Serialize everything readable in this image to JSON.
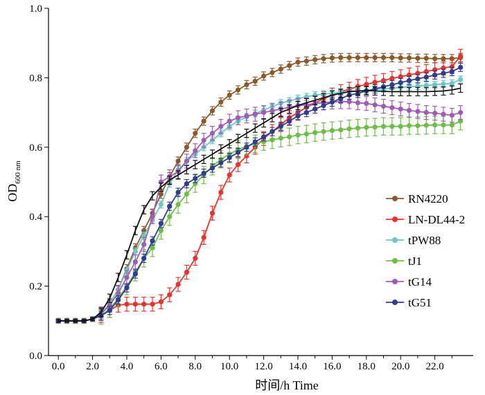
{
  "chart_data": {
    "type": "line",
    "title": "",
    "xlabel": "时间/h  Time",
    "ylabel": "OD",
    "ylabel_sub": "600 nm",
    "xlim": [
      -0.25,
      24.0
    ],
    "ylim": [
      0.0,
      1.0
    ],
    "x_ticks": [
      0,
      2,
      4,
      6,
      8,
      10,
      12,
      14,
      16,
      18,
      20,
      22
    ],
    "x_tick_labels": [
      "0.0",
      "2.0",
      "4.0",
      "6.0",
      "8.0",
      "10.0",
      "12.0",
      "14.0",
      "16.0",
      "18.0",
      "20.0",
      "22.0"
    ],
    "y_ticks": [
      0.0,
      0.2,
      0.4,
      0.6,
      0.8,
      1.0
    ],
    "y_tick_labels": [
      "0.0",
      "0.2",
      "0.4",
      "0.6",
      "0.8",
      "1.0"
    ],
    "grid": false,
    "legend_position": "right",
    "series": [
      {
        "name": "RN4220",
        "color": "#8B5A2B",
        "err": 0.012,
        "values": [
          0.1,
          0.1,
          0.1,
          0.1,
          0.105,
          0.12,
          0.15,
          0.19,
          0.25,
          0.31,
          0.36,
          0.41,
          0.465,
          0.515,
          0.56,
          0.6,
          0.64,
          0.675,
          0.705,
          0.73,
          0.75,
          0.765,
          0.78,
          0.79,
          0.805,
          0.815,
          0.825,
          0.835,
          0.845,
          0.848,
          0.852,
          0.855,
          0.857,
          0.858,
          0.858,
          0.858,
          0.858,
          0.858,
          0.858,
          0.858,
          0.857,
          0.857,
          0.856,
          0.856,
          0.855,
          0.855,
          0.855,
          0.858
        ]
      },
      {
        "name": "LN-DL44-2",
        "color": "#E8322B",
        "err": 0.02,
        "values": [
          0.1,
          0.1,
          0.1,
          0.1,
          0.105,
          0.115,
          0.13,
          0.145,
          0.148,
          0.148,
          0.148,
          0.148,
          0.155,
          0.175,
          0.205,
          0.24,
          0.28,
          0.34,
          0.41,
          0.47,
          0.52,
          0.55,
          0.575,
          0.6,
          0.625,
          0.645,
          0.665,
          0.685,
          0.7,
          0.715,
          0.727,
          0.74,
          0.75,
          0.76,
          0.767,
          0.775,
          0.781,
          0.787,
          0.792,
          0.798,
          0.803,
          0.808,
          0.813,
          0.818,
          0.823,
          0.828,
          0.832,
          0.862
        ]
      },
      {
        "name": "tPW88",
        "color": "#6CC6C6",
        "err": 0.01,
        "values": [
          0.1,
          0.1,
          0.1,
          0.1,
          0.105,
          0.12,
          0.15,
          0.19,
          0.245,
          0.3,
          0.345,
          0.39,
          0.435,
          0.495,
          0.535,
          0.56,
          0.58,
          0.6,
          0.62,
          0.64,
          0.66,
          0.675,
          0.687,
          0.697,
          0.707,
          0.717,
          0.727,
          0.733,
          0.74,
          0.745,
          0.75,
          0.753,
          0.755,
          0.758,
          0.76,
          0.762,
          0.764,
          0.766,
          0.768,
          0.77,
          0.772,
          0.774,
          0.776,
          0.778,
          0.78,
          0.782,
          0.784,
          0.795
        ]
      },
      {
        "name": "tJ1",
        "color": "#6DBE45",
        "err": 0.025,
        "values": [
          0.1,
          0.1,
          0.1,
          0.1,
          0.105,
          0.115,
          0.135,
          0.165,
          0.2,
          0.24,
          0.28,
          0.31,
          0.36,
          0.4,
          0.435,
          0.465,
          0.495,
          0.52,
          0.545,
          0.565,
          0.58,
          0.593,
          0.603,
          0.61,
          0.616,
          0.621,
          0.626,
          0.63,
          0.635,
          0.638,
          0.642,
          0.645,
          0.648,
          0.65,
          0.653,
          0.655,
          0.657,
          0.658,
          0.66,
          0.66,
          0.66,
          0.662,
          0.662,
          0.663,
          0.664,
          0.664,
          0.664,
          0.675
        ]
      },
      {
        "name": "tG14",
        "color": "#A05BB5",
        "err": 0.02,
        "values": [
          0.1,
          0.1,
          0.1,
          0.1,
          0.105,
          0.12,
          0.145,
          0.18,
          0.225,
          0.27,
          0.32,
          0.4,
          0.5,
          0.515,
          0.53,
          0.56,
          0.59,
          0.62,
          0.64,
          0.66,
          0.675,
          0.685,
          0.69,
          0.695,
          0.7,
          0.705,
          0.71,
          0.715,
          0.72,
          0.722,
          0.726,
          0.728,
          0.73,
          0.731,
          0.731,
          0.728,
          0.726,
          0.722,
          0.718,
          0.714,
          0.71,
          0.706,
          0.703,
          0.7,
          0.698,
          0.695,
          0.692,
          0.7
        ]
      },
      {
        "name": "tG51",
        "color": "#2E3D8F",
        "err": 0.012,
        "values": [
          0.1,
          0.1,
          0.1,
          0.1,
          0.105,
          0.115,
          0.13,
          0.16,
          0.195,
          0.235,
          0.28,
          0.33,
          0.38,
          0.43,
          0.47,
          0.495,
          0.51,
          0.525,
          0.54,
          0.555,
          0.57,
          0.585,
          0.6,
          0.615,
          0.63,
          0.645,
          0.66,
          0.675,
          0.69,
          0.7,
          0.71,
          0.72,
          0.73,
          0.74,
          0.75,
          0.755,
          0.762,
          0.768,
          0.774,
          0.78,
          0.786,
          0.792,
          0.797,
          0.802,
          0.808,
          0.813,
          0.818,
          0.83
        ]
      },
      {
        "name": "",
        "color": "#111111",
        "err": 0.012,
        "values": [
          0.1,
          0.1,
          0.1,
          0.1,
          0.105,
          0.125,
          0.165,
          0.225,
          0.29,
          0.36,
          0.42,
          0.46,
          0.485,
          0.505,
          0.52,
          0.535,
          0.55,
          0.565,
          0.58,
          0.595,
          0.61,
          0.625,
          0.64,
          0.655,
          0.67,
          0.685,
          0.7,
          0.71,
          0.72,
          0.728,
          0.735,
          0.742,
          0.75,
          0.755,
          0.76,
          0.762,
          0.763,
          0.762,
          0.761,
          0.76,
          0.76,
          0.76,
          0.76,
          0.76,
          0.761,
          0.762,
          0.765,
          0.77
        ]
      }
    ]
  }
}
